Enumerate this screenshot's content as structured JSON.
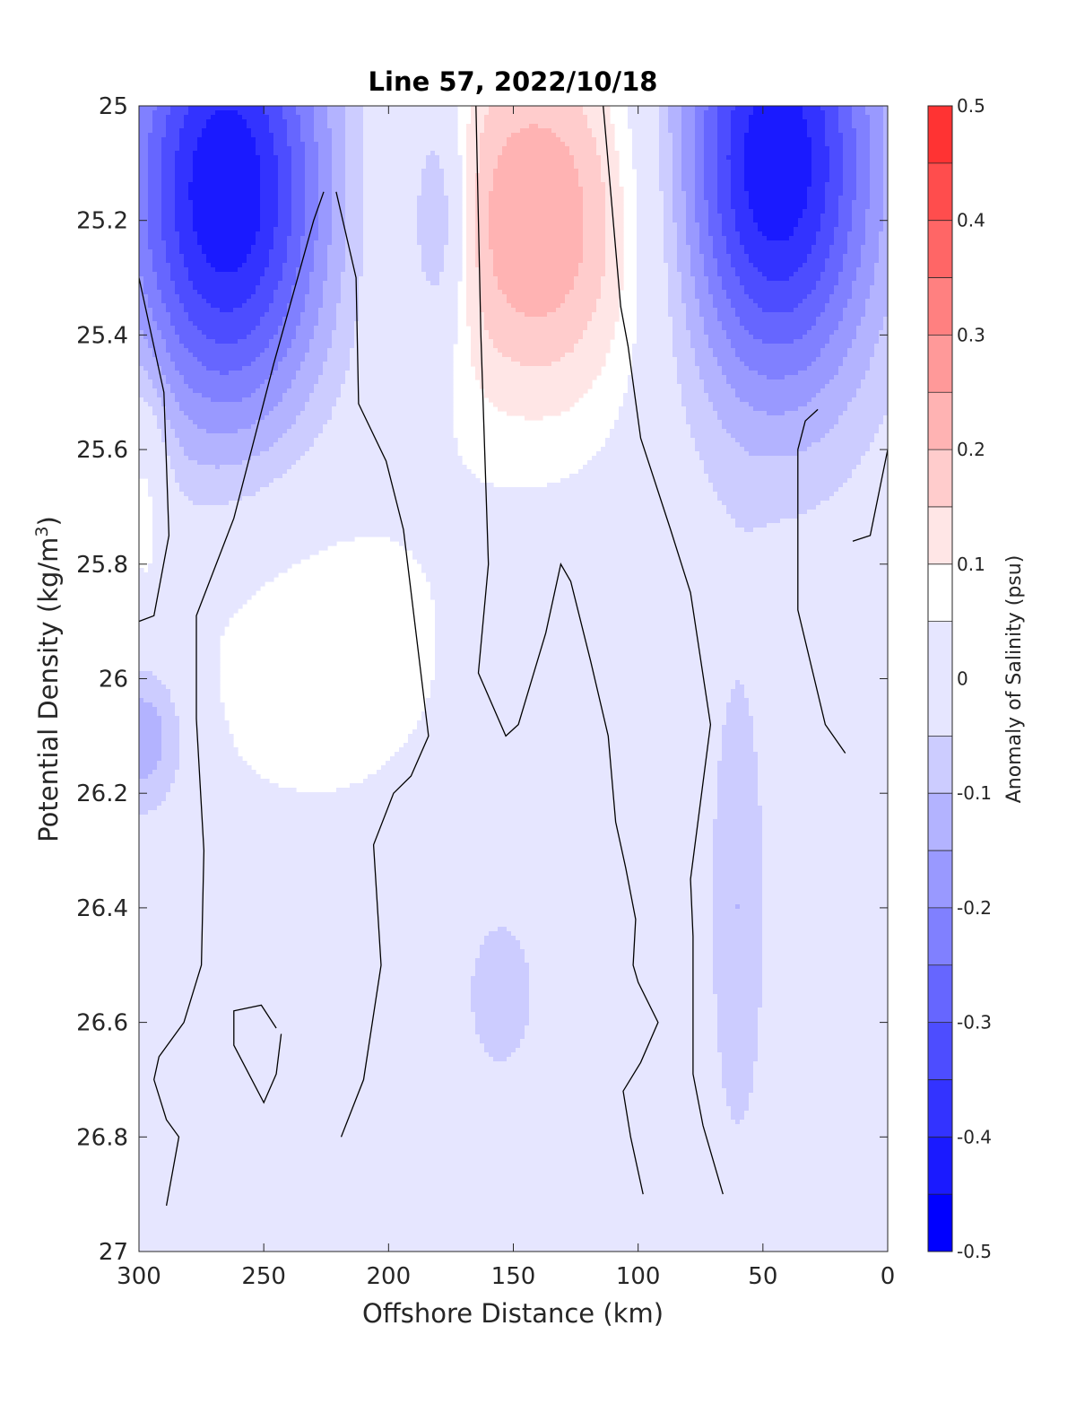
{
  "chart_data": {
    "type": "heatmap",
    "title": "Line 57, 2022/10/18",
    "xlabel": "Offshore Distance (km)",
    "ylabel_main": "Potential Density (kg/m",
    "ylabel_sup": "3",
    "ylabel_close": ")",
    "xlim": [
      300,
      0
    ],
    "ylim": [
      25,
      27
    ],
    "x_reversed": true,
    "y_reversed": true,
    "x_ticks": [
      300,
      250,
      200,
      150,
      100,
      50,
      0
    ],
    "x_tick_labels": [
      "300",
      "250",
      "200",
      "150",
      "100",
      "50",
      "0"
    ],
    "y_ticks": [
      25,
      25.2,
      25.4,
      25.6,
      25.8,
      26,
      26.2,
      26.4,
      26.6,
      26.8,
      27
    ],
    "y_tick_labels": [
      "25",
      "25.2",
      "25.4",
      "25.6",
      "25.8",
      "26",
      "26.2",
      "26.4",
      "26.6",
      "26.8",
      "27"
    ],
    "colorbar": {
      "label": "Anomaly of Salinity (psu)",
      "min": -0.5,
      "max": 0.5,
      "levels": [
        -0.5,
        -0.45,
        -0.4,
        -0.35,
        -0.3,
        -0.25,
        -0.2,
        -0.15,
        -0.1,
        -0.05,
        0.05,
        0.1,
        0.15,
        0.2,
        0.25,
        0.3,
        0.35,
        0.4,
        0.45,
        0.5
      ],
      "colors": [
        "#0000ff",
        "#1a1aff",
        "#3333ff",
        "#4d4dff",
        "#6666ff",
        "#8080ff",
        "#9999ff",
        "#b3b3ff",
        "#ccccff",
        "#e6e6ff",
        "#ffffff",
        "#ffe6e6",
        "#ffcccc",
        "#ffb3b3",
        "#ff9999",
        "#ff8080",
        "#ff6666",
        "#ff4d4d",
        "#ff3333",
        "#ff1a1a"
      ],
      "ticks": [
        0.5,
        0.4,
        0.3,
        0.2,
        0.1,
        0,
        -0.1,
        -0.2,
        -0.3,
        -0.4,
        -0.5
      ],
      "tick_labels": [
        "0.5",
        "0.4",
        "0.3",
        "0.2",
        "0.1",
        "0",
        "-0.1",
        "-0.2",
        "-0.3",
        "-0.4",
        "-0.5"
      ]
    },
    "anomaly_cores": [
      {
        "x": 265,
        "y": 25.15,
        "value": -0.45
      },
      {
        "x": 45,
        "y": 25.1,
        "value": -0.45
      },
      {
        "x": 140,
        "y": 25.2,
        "value": 0.25
      },
      {
        "x": 230,
        "y": 25.95,
        "value": 0.1
      },
      {
        "x": 298,
        "y": 25.65,
        "value": 0.1
      },
      {
        "x": 298,
        "y": 26.1,
        "value": -0.15
      },
      {
        "x": 155,
        "y": 26.55,
        "value": -0.1
      },
      {
        "x": 60,
        "y": 26.4,
        "value": -0.1
      },
      {
        "x": 180,
        "y": 25.2,
        "value": -0.2
      }
    ],
    "zero_contours": [
      [
        [
          300,
          25.3
        ],
        [
          290,
          25.5
        ],
        [
          288,
          25.75
        ],
        [
          294,
          25.89
        ],
        [
          300,
          25.9
        ]
      ],
      [
        [
          226,
          25.15
        ],
        [
          230,
          25.2
        ],
        [
          246,
          25.45
        ],
        [
          262,
          25.72
        ],
        [
          277,
          25.89
        ],
        [
          277,
          26.07
        ],
        [
          274,
          26.3
        ],
        [
          275,
          26.5
        ],
        [
          282,
          26.6
        ],
        [
          292,
          26.66
        ],
        [
          294,
          26.7
        ],
        [
          289,
          26.77
        ],
        [
          284,
          26.8
        ],
        [
          289,
          26.92
        ]
      ],
      [
        [
          221,
          25.15
        ],
        [
          213,
          25.3
        ],
        [
          212,
          25.52
        ],
        [
          201,
          25.62
        ],
        [
          194,
          25.74
        ],
        [
          184,
          26.1
        ],
        [
          191,
          26.17
        ],
        [
          198,
          26.2
        ],
        [
          206,
          26.29
        ],
        [
          203,
          26.5
        ],
        [
          210,
          26.7
        ],
        [
          219,
          26.8
        ]
      ],
      [
        [
          165,
          25
        ],
        [
          163,
          25.4
        ],
        [
          160,
          25.8
        ],
        [
          164,
          25.99
        ],
        [
          153,
          26.1
        ],
        [
          148,
          26.08
        ],
        [
          137,
          25.92
        ],
        [
          131,
          25.8
        ],
        [
          127,
          25.83
        ],
        [
          119,
          25.97
        ],
        [
          112,
          26.1
        ],
        [
          109,
          26.25
        ],
        [
          105,
          26.33
        ],
        [
          101,
          26.42
        ],
        [
          102,
          26.5
        ],
        [
          100,
          26.53
        ],
        [
          92,
          26.6
        ],
        [
          99,
          26.67
        ],
        [
          106,
          26.72
        ],
        [
          103,
          26.8
        ],
        [
          98,
          26.9
        ]
      ],
      [
        [
          114,
          25
        ],
        [
          107,
          25.35
        ],
        [
          104,
          25.42
        ],
        [
          99,
          25.58
        ],
        [
          87,
          25.74
        ],
        [
          79,
          25.85
        ],
        [
          71,
          26.08
        ],
        [
          79,
          26.35
        ],
        [
          78,
          26.45
        ],
        [
          78,
          26.69
        ],
        [
          74,
          26.78
        ],
        [
          66,
          26.9
        ]
      ],
      [
        [
          28,
          25.53
        ],
        [
          33,
          25.55
        ],
        [
          36,
          25.6
        ],
        [
          36,
          25.73
        ],
        [
          36,
          25.88
        ],
        [
          25,
          26.08
        ],
        [
          17,
          26.13
        ]
      ],
      [
        [
          0,
          25.6
        ],
        [
          7,
          25.75
        ],
        [
          14,
          25.76
        ]
      ],
      [
        [
          245,
          26.61
        ],
        [
          251,
          26.57
        ],
        [
          262,
          26.58
        ],
        [
          262,
          26.64
        ],
        [
          250,
          26.74
        ],
        [
          245,
          26.69
        ],
        [
          243,
          26.62
        ]
      ]
    ]
  }
}
